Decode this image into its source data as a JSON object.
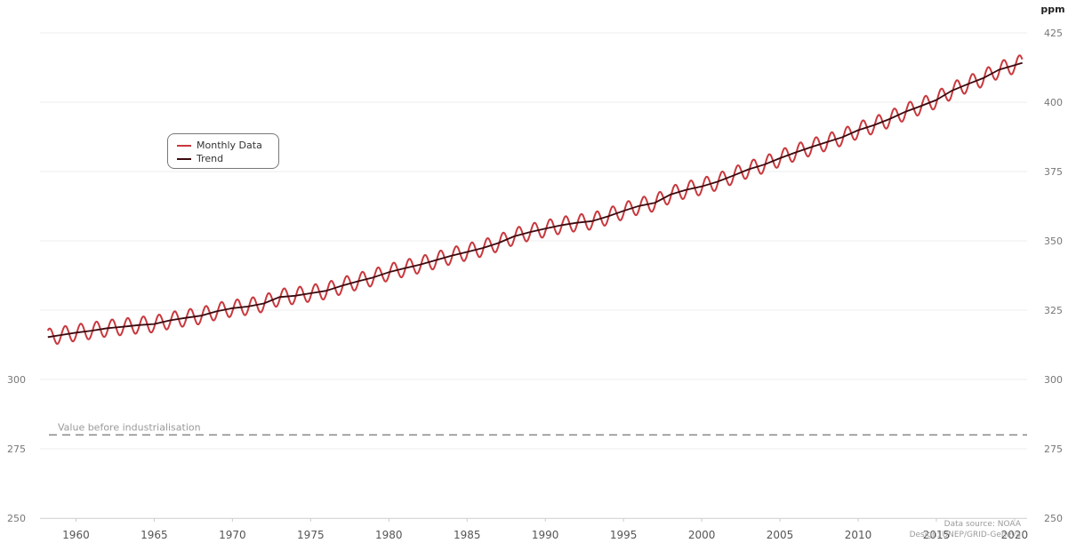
{
  "chart_data": {
    "type": "line",
    "title": "",
    "xlabel": "",
    "ylabel": "",
    "y_unit": "ppm",
    "xlim": [
      1957.7,
      2020.8
    ],
    "ylim": [
      250,
      425
    ],
    "x_ticks": [
      "1960",
      "1965",
      "1970",
      "1975",
      "1980",
      "1985",
      "1990",
      "1995",
      "2000",
      "2005",
      "2010",
      "2015",
      "2020"
    ],
    "y_ticks": [
      "250",
      "275",
      "300",
      "325",
      "350",
      "375",
      "400",
      "425"
    ],
    "left_axis_ticks": [
      "250",
      "275",
      "300"
    ],
    "grid": "horizontal",
    "legend_position": "top-left",
    "series": [
      {
        "name": "Monthly Data",
        "color": "#c8383d",
        "seasonal_amplitude_ppm": 3,
        "x": [
          1958.2,
          1959,
          1960,
          1961,
          1962,
          1963,
          1964,
          1965,
          1966,
          1967,
          1968,
          1969,
          1970,
          1971,
          1972,
          1973,
          1974,
          1975,
          1976,
          1977,
          1978,
          1979,
          1980,
          1981,
          1982,
          1983,
          1984,
          1985,
          1986,
          1987,
          1988,
          1989,
          1990,
          1991,
          1992,
          1993,
          1994,
          1995,
          1996,
          1997,
          1998,
          1999,
          2000,
          2001,
          2002,
          2003,
          2004,
          2005,
          2006,
          2007,
          2008,
          2009,
          2010,
          2011,
          2012,
          2013,
          2014,
          2015,
          2016,
          2017,
          2018,
          2019,
          2020.5
        ],
        "y": [
          315.3,
          316.0,
          316.9,
          317.6,
          318.5,
          319.0,
          319.6,
          320.0,
          321.3,
          322.2,
          323.0,
          324.6,
          325.7,
          326.3,
          327.4,
          329.7,
          330.2,
          331.1,
          332.0,
          333.8,
          335.4,
          336.8,
          338.7,
          340.1,
          341.4,
          343.0,
          344.6,
          346.0,
          347.4,
          349.2,
          351.6,
          353.1,
          354.4,
          355.6,
          356.5,
          357.1,
          358.8,
          360.8,
          362.6,
          363.7,
          366.7,
          368.4,
          369.6,
          371.3,
          373.5,
          375.8,
          377.5,
          379.8,
          381.9,
          383.8,
          385.6,
          387.4,
          389.9,
          391.7,
          393.9,
          396.5,
          398.6,
          400.8,
          404.2,
          406.5,
          408.7,
          411.7,
          414.2
        ]
      },
      {
        "name": "Trend",
        "color": "#3b0a0e",
        "x": [
          1958.2,
          1959,
          1960,
          1961,
          1962,
          1963,
          1964,
          1965,
          1966,
          1967,
          1968,
          1969,
          1970,
          1971,
          1972,
          1973,
          1974,
          1975,
          1976,
          1977,
          1978,
          1979,
          1980,
          1981,
          1982,
          1983,
          1984,
          1985,
          1986,
          1987,
          1988,
          1989,
          1990,
          1991,
          1992,
          1993,
          1994,
          1995,
          1996,
          1997,
          1998,
          1999,
          2000,
          2001,
          2002,
          2003,
          2004,
          2005,
          2006,
          2007,
          2008,
          2009,
          2010,
          2011,
          2012,
          2013,
          2014,
          2015,
          2016,
          2017,
          2018,
          2019,
          2020.5
        ],
        "y": [
          315.3,
          316.0,
          316.9,
          317.6,
          318.5,
          319.0,
          319.6,
          320.0,
          321.3,
          322.2,
          323.0,
          324.6,
          325.7,
          326.3,
          327.4,
          329.7,
          330.2,
          331.1,
          332.0,
          333.8,
          335.4,
          336.8,
          338.7,
          340.1,
          341.4,
          343.0,
          344.6,
          346.0,
          347.4,
          349.2,
          351.6,
          353.1,
          354.4,
          355.6,
          356.5,
          357.1,
          358.8,
          360.8,
          362.6,
          363.7,
          366.7,
          368.4,
          369.6,
          371.3,
          373.5,
          375.8,
          377.5,
          379.8,
          381.9,
          383.8,
          385.6,
          387.4,
          389.9,
          391.7,
          393.9,
          396.5,
          398.6,
          400.8,
          404.2,
          406.5,
          408.7,
          411.7,
          414.2
        ]
      }
    ],
    "reference_line": {
      "label": "Value before industrialisation",
      "value": 280,
      "style": "dashed",
      "color": "#888888"
    },
    "annotations": {
      "source": "Data source: NOAA",
      "design": "Design: UNEP/GRID-Geneva"
    }
  }
}
